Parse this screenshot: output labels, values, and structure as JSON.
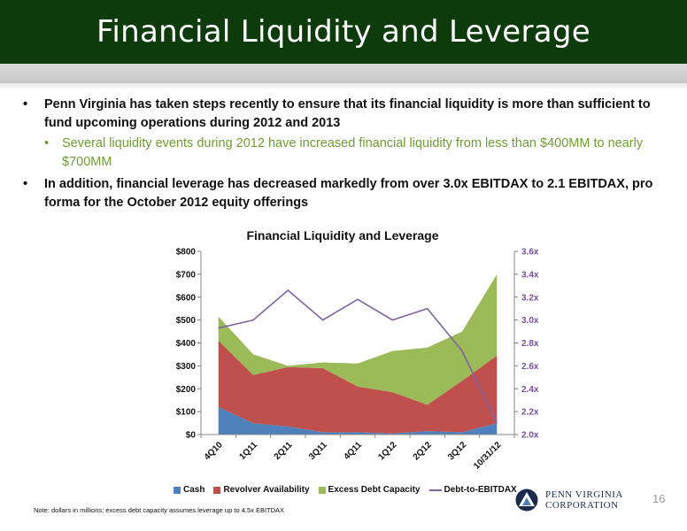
{
  "header": {
    "title": "Financial Liquidity and Leverage"
  },
  "bullets": {
    "b1": "Penn Virginia has taken steps recently to ensure that its financial liquidity is more than sufficient to fund upcoming operations during 2012 and 2013",
    "b2": "Several liquidity events during 2012 have increased financial liquidity from less than $400MM to nearly $700MM",
    "b3": "In addition, financial leverage has decreased markedly from over 3.0x EBITDAX to 2.1 EBITDAX, pro forma for the October 2012 equity offerings"
  },
  "colors": {
    "cash": "#4f81bd",
    "revolver": "#c0504d",
    "excess": "#9bbb59",
    "leverage": "#8064a2",
    "title_bg": "#0e3b0c"
  },
  "chart_data": {
    "type": "area",
    "title": "Financial Liquidity and Leverage",
    "categories": [
      "4Q10",
      "1Q11",
      "2Q11",
      "3Q11",
      "4Q11",
      "1Q12",
      "2Q12",
      "3Q12",
      "10/31/12"
    ],
    "series": [
      {
        "name": "Cash",
        "type": "stacked-area",
        "values": [
          120,
          50,
          35,
          10,
          10,
          5,
          15,
          10,
          50
        ]
      },
      {
        "name": "Revolver Availability",
        "type": "stacked-area",
        "values": [
          290,
          210,
          260,
          280,
          200,
          180,
          115,
          225,
          295
        ]
      },
      {
        "name": "Excess Debt Capacity",
        "type": "stacked-area",
        "values": [
          105,
          90,
          5,
          25,
          100,
          180,
          250,
          215,
          355
        ]
      },
      {
        "name": "Debt-to-EBITDAX",
        "type": "line",
        "axis": "right",
        "values": [
          2.93,
          3.0,
          3.26,
          3.0,
          3.18,
          3.0,
          3.1,
          2.73,
          2.1
        ]
      }
    ],
    "y_ticks": [
      "$0",
      "$100",
      "$200",
      "$300",
      "$400",
      "$500",
      "$600",
      "$700",
      "$800"
    ],
    "y2_ticks": [
      "2.0x",
      "2.2x",
      "2.4x",
      "2.6x",
      "2.8x",
      "3.0x",
      "3.2x",
      "3.4x",
      "3.6x"
    ],
    "ylim": [
      0,
      800
    ],
    "y2lim": [
      2.0,
      3.6
    ],
    "legend_position": "bottom"
  },
  "legend": {
    "cash": "Cash",
    "revolver": "Revolver Availability",
    "excess": "Excess Debt Capacity",
    "leverage": "Debt-to-EBITDAX"
  },
  "footer": {
    "note": "Note: dollars in millions; excess debt capacity assumes leverage up to 4.5x EBITDAX",
    "logo_line1": "PENN VIRGINIA",
    "logo_line2": "CORPORATION",
    "page_number": "16"
  }
}
